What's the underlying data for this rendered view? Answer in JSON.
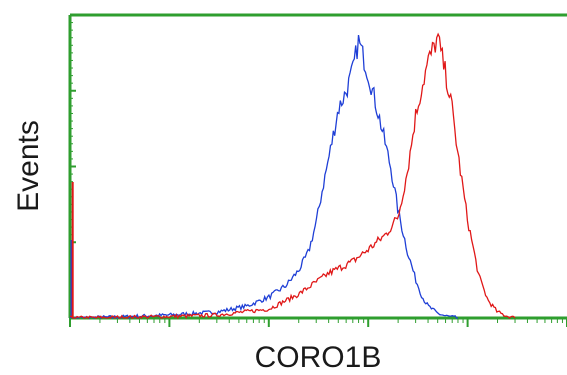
{
  "chart_data": {
    "type": "line",
    "title": "",
    "xlabel": "CORO1B",
    "ylabel": "Events",
    "x_scale": "log",
    "xlim": [
      1,
      100000
    ],
    "ylim": [
      0,
      1
    ],
    "grid": false,
    "legend": "none",
    "axis_color": "#2f9e2f",
    "series": [
      {
        "color": "#1f3fd6",
        "x": [
          1,
          3,
          10,
          30,
          60,
          100,
          150,
          200,
          250,
          300,
          350,
          420,
          500,
          600,
          700,
          800,
          1000,
          1300,
          1700,
          2000,
          2500,
          3000,
          3500,
          4000,
          5000,
          6000,
          7000,
          8000
        ],
        "values": [
          0.0,
          0.003,
          0.01,
          0.02,
          0.04,
          0.07,
          0.11,
          0.16,
          0.22,
          0.32,
          0.44,
          0.57,
          0.7,
          0.76,
          0.83,
          0.93,
          0.82,
          0.67,
          0.5,
          0.36,
          0.22,
          0.13,
          0.07,
          0.04,
          0.015,
          0.007,
          0.003,
          0.0
        ]
      },
      {
        "color": "#e01818",
        "x": [
          1,
          3,
          10,
          30,
          100,
          200,
          400,
          700,
          1000,
          1500,
          2000,
          2500,
          3000,
          3500,
          4000,
          5000,
          6000,
          7000,
          8000,
          10000,
          13000,
          16000,
          20000,
          25000,
          30000
        ],
        "values": [
          0.0,
          0.002,
          0.005,
          0.01,
          0.03,
          0.08,
          0.15,
          0.19,
          0.23,
          0.28,
          0.34,
          0.5,
          0.68,
          0.78,
          0.86,
          0.94,
          0.82,
          0.7,
          0.55,
          0.33,
          0.14,
          0.06,
          0.02,
          0.006,
          0.0
        ]
      }
    ]
  }
}
